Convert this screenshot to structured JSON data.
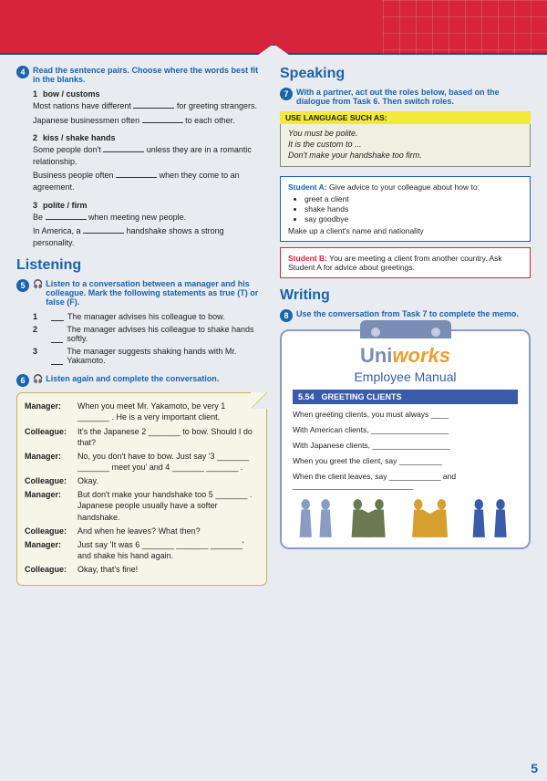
{
  "page_number": "5",
  "ex4": {
    "instruction": "Read the sentence pairs. Choose where the words best fit in the blanks.",
    "items": [
      {
        "num": "1",
        "title": "bow / customs",
        "s1a": "Most nations have different ",
        "s1b": " for greeting strangers.",
        "s2a": "Japanese businessmen often ",
        "s2b": " to each other."
      },
      {
        "num": "2",
        "title": "kiss / shake hands",
        "s1a": "Some people don't ",
        "s1b": " unless they are in a romantic relationship.",
        "s2a": "Business people often ",
        "s2b": " when they come to an agreement."
      },
      {
        "num": "3",
        "title": "polite / firm",
        "s1a": "Be ",
        "s1b": " when meeting new people.",
        "s2a": "In America, a ",
        "s2b": " handshake shows a strong personality."
      }
    ]
  },
  "listening": {
    "heading": "Listening",
    "ex5": {
      "instruction": "Listen to a conversation between a manager and his colleague. Mark the following statements as true (T) or false (F).",
      "items": [
        {
          "num": "1",
          "text": "The manager advises his colleague to bow."
        },
        {
          "num": "2",
          "text": "The manager advises his colleague to shake hands softly."
        },
        {
          "num": "3",
          "text": "The manager suggests shaking hands with Mr. Yakamoto."
        }
      ]
    },
    "ex6": {
      "instruction": "Listen again and complete the conversation.",
      "rows": [
        {
          "sp": "Manager:",
          "t": "When you meet Mr. Yakamoto, be very 1 _______ . He is a very important client."
        },
        {
          "sp": "Colleague:",
          "t": "It's the Japanese 2 _______ to bow. Should I do that?"
        },
        {
          "sp": "Manager:",
          "t": "No, you don't have to bow. Just say '3 _______ _______ meet you' and 4 _______ _______ ."
        },
        {
          "sp": "Colleague:",
          "t": "Okay."
        },
        {
          "sp": "Manager:",
          "t": "But don't make your handshake too 5 _______ . Japanese people usually have a softer handshake."
        },
        {
          "sp": "Colleague:",
          "t": "And when he leaves? What then?"
        },
        {
          "sp": "Manager:",
          "t": "Just say 'It was 6 _______ _______ _______' and shake his hand again."
        },
        {
          "sp": "Colleague:",
          "t": "Okay, that's fine!"
        }
      ]
    }
  },
  "speaking": {
    "heading": "Speaking",
    "ex7": "With a partner, act out the roles below, based on the dialogue from Task 6. Then switch roles.",
    "lang_label": "USE LANGUAGE SUCH AS:",
    "lang": [
      "You must be polite.",
      "It is the custom to ...",
      "Don't make your handshake too firm."
    ],
    "roleA_label": "Student A:",
    "roleA_text": " Give advice to your colleague about how to:",
    "roleA_bullets": [
      "greet a client",
      "shake hands",
      "say goodbye"
    ],
    "roleA_foot": "Make up a client's name and nationality",
    "roleB_label": "Student B:",
    "roleB_text": " You are meeting a client from another country. Ask Student A for advice about greetings."
  },
  "writing": {
    "heading": "Writing",
    "ex8": "Use the conversation from Task 7 to complete the memo.",
    "manual": {
      "brand1": "Uni",
      "brand2": "works",
      "subtitle": "Employee Manual",
      "bar_num": "5.54",
      "bar_text": "GREETING CLIENTS",
      "lines": [
        "When greeting clients, you must always ____",
        "With American clients, __________________",
        "With Japanese clients, __________________",
        "When you greet the client, say __________",
        "When the client leaves, say ____________ and ____________________________"
      ]
    }
  }
}
